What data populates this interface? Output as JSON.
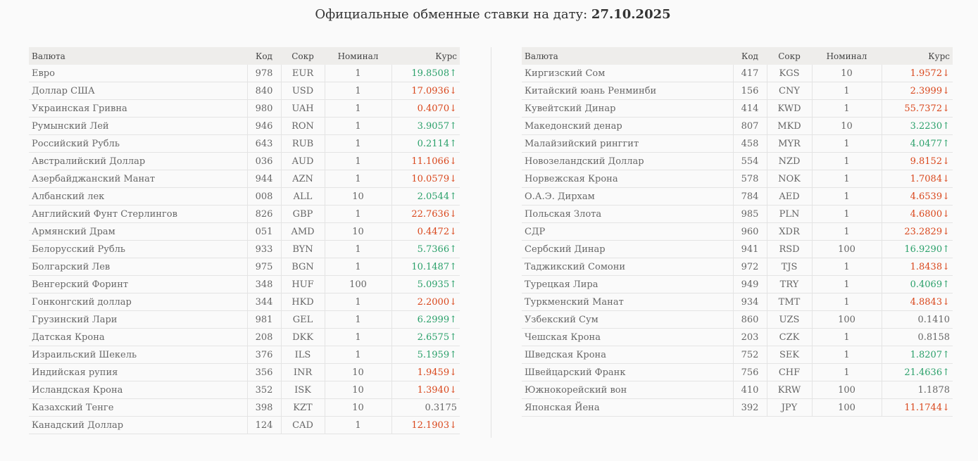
{
  "header": {
    "title_prefix": "Официальные обменные ставки на дату:",
    "date": "27.10.2025"
  },
  "table_headers": {
    "name": "Валюта",
    "code": "Код",
    "abbr": "Сокр",
    "nominal": "Номинал",
    "rate": "Курс"
  },
  "left_rates": [
    {
      "name": "Евро",
      "code": "978",
      "abbr": "EUR",
      "nominal": "1",
      "rate": "19.8508↑",
      "trend": "up"
    },
    {
      "name": "Доллар США",
      "code": "840",
      "abbr": "USD",
      "nominal": "1",
      "rate": "17.0936↓",
      "trend": "down"
    },
    {
      "name": "Украинская Гривна",
      "code": "980",
      "abbr": "UAH",
      "nominal": "1",
      "rate": "0.4070↓",
      "trend": "down"
    },
    {
      "name": "Румынский Лей",
      "code": "946",
      "abbr": "RON",
      "nominal": "1",
      "rate": "3.9057↑",
      "trend": "up"
    },
    {
      "name": "Российский Рубль",
      "code": "643",
      "abbr": "RUB",
      "nominal": "1",
      "rate": "0.2114↑",
      "trend": "up"
    },
    {
      "name": "Австралийский Доллар",
      "code": "036",
      "abbr": "AUD",
      "nominal": "1",
      "rate": "11.1066↓",
      "trend": "down"
    },
    {
      "name": "Азербайджанский Манат",
      "code": "944",
      "abbr": "AZN",
      "nominal": "1",
      "rate": "10.0579↓",
      "trend": "down"
    },
    {
      "name": "Албанский лек",
      "code": "008",
      "abbr": "ALL",
      "nominal": "10",
      "rate": "2.0544↑",
      "trend": "up"
    },
    {
      "name": "Английский Фунт Стерлингов",
      "code": "826",
      "abbr": "GBP",
      "nominal": "1",
      "rate": "22.7636↓",
      "trend": "down"
    },
    {
      "name": "Армянский Драм",
      "code": "051",
      "abbr": "AMD",
      "nominal": "10",
      "rate": "0.4472↓",
      "trend": "down"
    },
    {
      "name": "Белорусский Рубль",
      "code": "933",
      "abbr": "BYN",
      "nominal": "1",
      "rate": "5.7366↑",
      "trend": "up"
    },
    {
      "name": "Болгарский Лев",
      "code": "975",
      "abbr": "BGN",
      "nominal": "1",
      "rate": "10.1487↑",
      "trend": "up"
    },
    {
      "name": "Венгерский Форинт",
      "code": "348",
      "abbr": "HUF",
      "nominal": "100",
      "rate": "5.0935↑",
      "trend": "up"
    },
    {
      "name": "Гонконгский доллар",
      "code": "344",
      "abbr": "HKD",
      "nominal": "1",
      "rate": "2.2000↓",
      "trend": "down"
    },
    {
      "name": "Грузинский Лари",
      "code": "981",
      "abbr": "GEL",
      "nominal": "1",
      "rate": "6.2999↑",
      "trend": "up"
    },
    {
      "name": "Датская Крона",
      "code": "208",
      "abbr": "DKK",
      "nominal": "1",
      "rate": "2.6575↑",
      "trend": "up"
    },
    {
      "name": "Израильский Шекель",
      "code": "376",
      "abbr": "ILS",
      "nominal": "1",
      "rate": "5.1959↑",
      "trend": "up"
    },
    {
      "name": "Индийская рупия",
      "code": "356",
      "abbr": "INR",
      "nominal": "10",
      "rate": "1.9459↓",
      "trend": "down"
    },
    {
      "name": "Исландская Крона",
      "code": "352",
      "abbr": "ISK",
      "nominal": "10",
      "rate": "1.3940↓",
      "trend": "down"
    },
    {
      "name": "Казахский Тенге",
      "code": "398",
      "abbr": "KZT",
      "nominal": "10",
      "rate": "0.3175",
      "trend": "same"
    },
    {
      "name": "Канадский Доллар",
      "code": "124",
      "abbr": "CAD",
      "nominal": "1",
      "rate": "12.1903↓",
      "trend": "down"
    }
  ],
  "right_rates": [
    {
      "name": "Киргизский Сом",
      "code": "417",
      "abbr": "KGS",
      "nominal": "10",
      "rate": "1.9572↓",
      "trend": "down"
    },
    {
      "name": "Китайский юань Ренминби",
      "code": "156",
      "abbr": "CNY",
      "nominal": "1",
      "rate": "2.3999↓",
      "trend": "down"
    },
    {
      "name": "Кувейтский Динар",
      "code": "414",
      "abbr": "KWD",
      "nominal": "1",
      "rate": "55.7372↓",
      "trend": "down"
    },
    {
      "name": "Македонский денар",
      "code": "807",
      "abbr": "MKD",
      "nominal": "10",
      "rate": "3.2230↑",
      "trend": "up"
    },
    {
      "name": "Малайзийский ринггит",
      "code": "458",
      "abbr": "MYR",
      "nominal": "1",
      "rate": "4.0477↑",
      "trend": "up"
    },
    {
      "name": "Новозеландский Доллар",
      "code": "554",
      "abbr": "NZD",
      "nominal": "1",
      "rate": "9.8152↓",
      "trend": "down"
    },
    {
      "name": "Норвежская Крона",
      "code": "578",
      "abbr": "NOK",
      "nominal": "1",
      "rate": "1.7084↓",
      "trend": "down"
    },
    {
      "name": "О.А.Э. Дирхам",
      "code": "784",
      "abbr": "AED",
      "nominal": "1",
      "rate": "4.6539↓",
      "trend": "down"
    },
    {
      "name": "Польская Злота",
      "code": "985",
      "abbr": "PLN",
      "nominal": "1",
      "rate": "4.6800↓",
      "trend": "down"
    },
    {
      "name": "СДР",
      "code": "960",
      "abbr": "XDR",
      "nominal": "1",
      "rate": "23.2829↓",
      "trend": "down"
    },
    {
      "name": "Сербский Динар",
      "code": "941",
      "abbr": "RSD",
      "nominal": "100",
      "rate": "16.9290↑",
      "trend": "up"
    },
    {
      "name": "Таджикский Сомони",
      "code": "972",
      "abbr": "TJS",
      "nominal": "1",
      "rate": "1.8438↓",
      "trend": "down"
    },
    {
      "name": "Турецкая Лира",
      "code": "949",
      "abbr": "TRY",
      "nominal": "1",
      "rate": "0.4069↑",
      "trend": "up"
    },
    {
      "name": "Туркменский Манат",
      "code": "934",
      "abbr": "TMT",
      "nominal": "1",
      "rate": "4.8843↓",
      "trend": "down"
    },
    {
      "name": "Узбекский Сум",
      "code": "860",
      "abbr": "UZS",
      "nominal": "100",
      "rate": "0.1410",
      "trend": "same"
    },
    {
      "name": "Чешская Крона",
      "code": "203",
      "abbr": "CZK",
      "nominal": "1",
      "rate": "0.8158",
      "trend": "same"
    },
    {
      "name": "Шведская Крона",
      "code": "752",
      "abbr": "SEK",
      "nominal": "1",
      "rate": "1.8207↑",
      "trend": "up"
    },
    {
      "name": "Швейцарский Франк",
      "code": "756",
      "abbr": "CHF",
      "nominal": "1",
      "rate": "21.4636↑",
      "trend": "up"
    },
    {
      "name": "Южнокорейский вон",
      "code": "410",
      "abbr": "KRW",
      "nominal": "100",
      "rate": "1.1878",
      "trend": "same"
    },
    {
      "name": "Японская Йена",
      "code": "392",
      "abbr": "JPY",
      "nominal": "100",
      "rate": "11.1744↓",
      "trend": "down"
    }
  ],
  "colors": {
    "up": "#2aa06a",
    "down": "#d9461b",
    "header_bg": "#eeedeb"
  }
}
